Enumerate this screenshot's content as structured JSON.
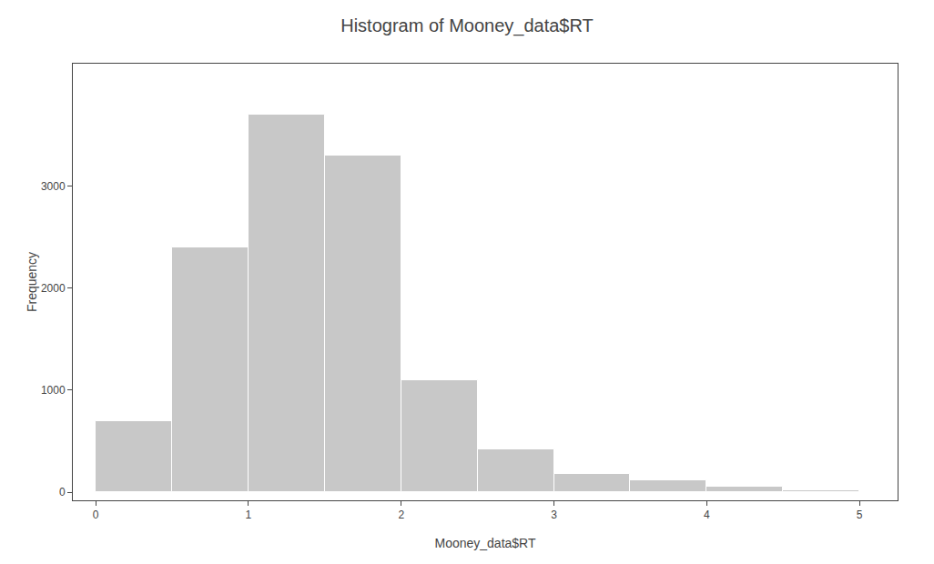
{
  "chart_data": {
    "type": "histogram",
    "title": "Histogram of Mooney_data$RT",
    "x_label": "Mooney_data$RT",
    "y_label": "Frequency",
    "bins": [
      0.0,
      0.5,
      1.0,
      1.5,
      2.0,
      2.5,
      3.0,
      3.5,
      4.0,
      4.5,
      5.0
    ],
    "values": [
      700,
      2400,
      3700,
      3300,
      1100,
      420,
      180,
      120,
      50,
      20
    ],
    "color": "#c8c8c8",
    "xlim": [
      -0.15,
      5.25
    ],
    "xticks": [
      0,
      1,
      2,
      3,
      4,
      5
    ],
    "ylim": [
      -80,
      4200
    ],
    "yticks": [
      0,
      1000,
      2000,
      3000
    ],
    "grid": false
  }
}
